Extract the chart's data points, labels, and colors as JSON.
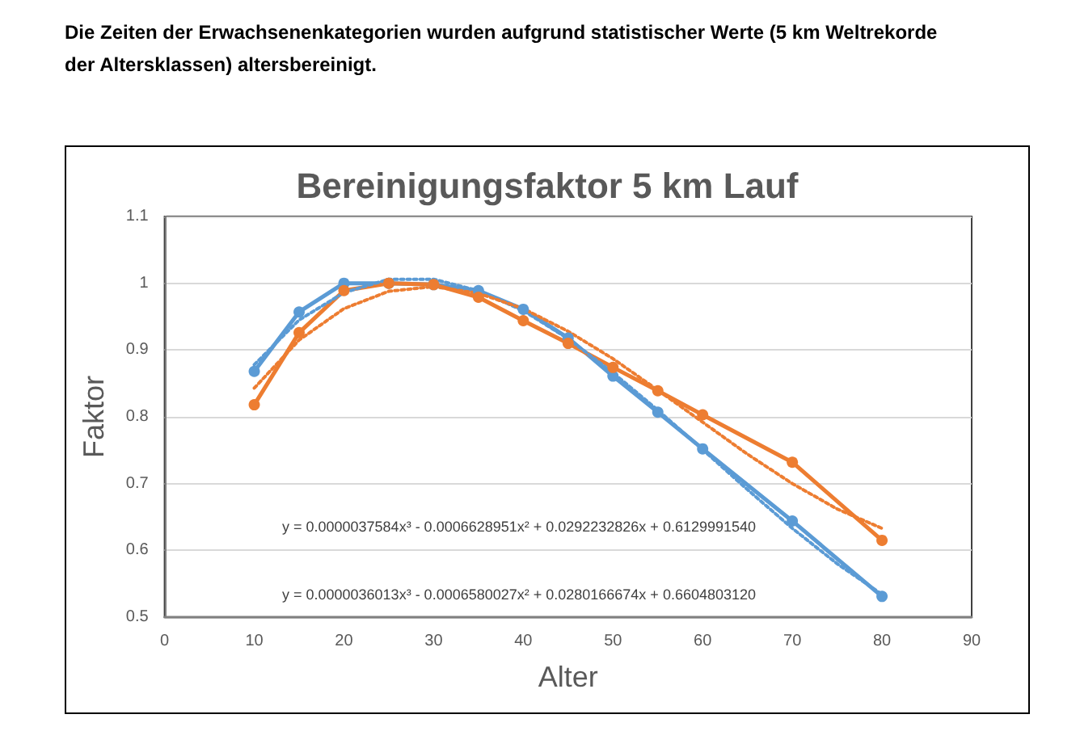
{
  "chart_data": {
    "type": "line",
    "title": "Bereinigungsfaktor 5 km Lauf",
    "xlabel": "Alter",
    "ylabel": "Faktor",
    "annotations": [
      "Die Zeiten der Erwachsenenkategorien wurden aufgrund statistischer Werte (5 km Weltrekorde der Altersklassen) altersbereinigt.",
      "y = 0.0000037584x³ - 0.0006628951x² + 0.0292232826x + 0.6129991540",
      "y = 0.0000036013x³ - 0.0006580027x² + 0.0280166674x + 0.6604803120"
    ],
    "x": [
      10,
      15,
      20,
      25,
      30,
      35,
      40,
      45,
      50,
      55,
      60,
      70,
      80
    ],
    "series": [
      {
        "color": "#5b9bd5",
        "values": [
          0.868,
          0.957,
          1.0,
          1.0,
          0.998,
          0.989,
          0.961,
          0.918,
          0.861,
          0.807,
          0.752,
          0.644,
          0.531
        ]
      },
      {
        "color": "#ed7d31",
        "values": [
          0.818,
          0.926,
          0.989,
          1.0,
          0.998,
          0.979,
          0.944,
          0.91,
          0.874,
          0.839,
          0.803,
          0.732,
          0.615
        ]
      },
      {
        "type": "line",
        "color": "#5b9bd5",
        "marker": "none",
        "line_style": "dotted",
        "x": [
          10,
          15,
          20,
          25,
          30,
          35,
          40,
          45,
          50,
          55,
          60,
          65,
          70,
          75,
          80
        ],
        "values": [
          0.878,
          0.945,
          0.986,
          1.006,
          1.006,
          0.989,
          0.959,
          0.917,
          0.866,
          0.81,
          0.751,
          0.691,
          0.633,
          0.58,
          0.534
        ]
      },
      {
        "type": "line",
        "color": "#ed7d31",
        "marker": "none",
        "line_style": "dotted",
        "x": [
          10,
          15,
          20,
          25,
          30,
          35,
          40,
          45,
          50,
          55,
          60,
          65,
          70,
          75,
          80
        ],
        "values": [
          0.843,
          0.915,
          0.962,
          0.988,
          0.995,
          0.985,
          0.962,
          0.928,
          0.887,
          0.84,
          0.792,
          0.744,
          0.7,
          0.662,
          0.633
        ]
      }
    ],
    "xlim": [
      0,
      90
    ],
    "xticks": [
      0,
      10,
      20,
      30,
      40,
      50,
      60,
      70,
      80,
      90
    ],
    "ylim": [
      0.5,
      1.1
    ],
    "yticks": [
      0.5,
      0.6,
      0.7,
      0.8,
      0.9,
      1,
      1.1
    ],
    "grid": "y",
    "marker": "circle",
    "line_style": "solid"
  }
}
